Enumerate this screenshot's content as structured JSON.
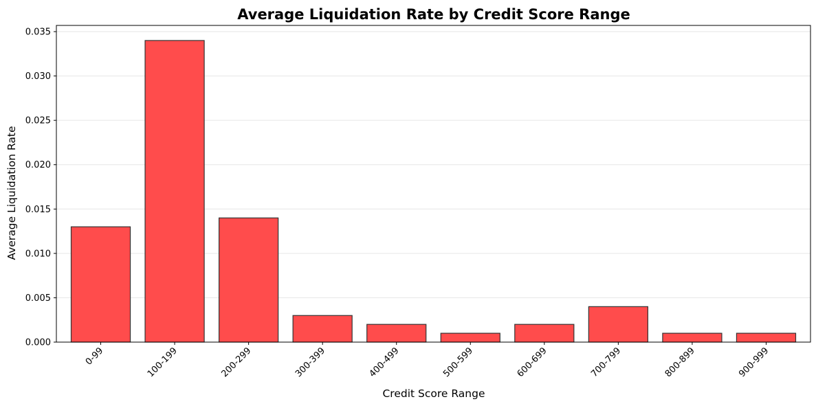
{
  "chart_data": {
    "type": "bar",
    "title": "Average Liquidation Rate by Credit Score Range",
    "xlabel": "Credit Score Range",
    "ylabel": "Average Liquidation Rate",
    "categories": [
      "0-99",
      "100-199",
      "200-299",
      "300-399",
      "400-499",
      "500-599",
      "600-699",
      "700-799",
      "800-899",
      "900-999"
    ],
    "values": [
      0.013,
      0.034,
      0.014,
      0.003,
      0.002,
      0.001,
      0.002,
      0.004,
      0.001,
      0.001
    ],
    "ylim": [
      0,
      0.0357
    ],
    "yticks": [
      "0.000",
      "0.005",
      "0.010",
      "0.015",
      "0.020",
      "0.025",
      "0.030",
      "0.035"
    ],
    "grid": "horizontal",
    "colors": {
      "bar_fill": "#ff4c4c",
      "bar_edge": "#333333",
      "grid": "#e6e6e6"
    }
  }
}
